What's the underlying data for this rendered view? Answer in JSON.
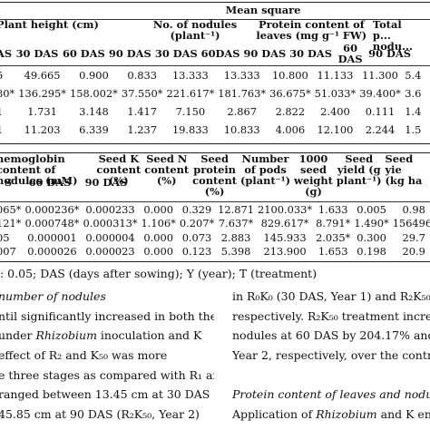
{
  "table1": {
    "group_header": "Mean square",
    "col_groups": [
      "Plant height (cm)",
      "No. of nodules (plant⁻¹)",
      "Protein content of leaves (mg g⁻¹ FW)",
      "Total p... nodu..."
    ],
    "sub_headers": [
      "AS",
      "30 DAS",
      "60 DAS",
      "90 DAS",
      "30 DAS",
      "60DAS",
      "90 DAS",
      "30 DAS",
      "60 DAS",
      "90 DAS"
    ],
    "rows": [
      [
        "5",
        "49.665",
        "0.900",
        "0.833",
        "13.333",
        "13.333",
        "10.800",
        "11.133",
        "11.300",
        "5.4"
      ],
      [
        "80*",
        "136.295*",
        "158.002*",
        "37.550*",
        "221.617*",
        "181.763*",
        "36.675*",
        "51.033*",
        "39.400*",
        "3.6"
      ],
      [
        "1",
        "1.731",
        "3.148",
        "1.417",
        "7.150",
        "2.867",
        "2.822",
        "2.400",
        "0.111",
        "1.4"
      ],
      [
        "1",
        "11.203",
        "6.339",
        "1.237",
        "19.833",
        "10.833",
        "4.006",
        "12.100",
        "2.244",
        "1.5"
      ]
    ]
  },
  "table2": {
    "headers": [
      "nemoglobin content of nodules (mM)",
      "Seed K content (%)",
      "Seed N content (%)",
      "Seed protein content (%)",
      "Number of pods (plant⁻¹)",
      "1000 seed weight (g)",
      "Seed yield (g plant⁻¹)",
      "Seed yie (kg ha"
    ],
    "sub_headers": [
      "S",
      "60 DAS",
      "90 DAS"
    ],
    "rows": [
      [
        "065*",
        "0.000236*",
        "0.000233",
        "0.000",
        "0.329",
        "12.871",
        "2100.033*",
        "1.633",
        "0.005",
        "0.98"
      ],
      [
        "121*",
        "0.000748*",
        "0.000313*",
        "1.106*",
        "0.207*",
        "7.637*",
        "829.617*",
        "8.791*",
        "1.490*",
        "156496."
      ],
      [
        "05",
        "0.000001",
        "0.000004",
        "0.000",
        "0.073",
        "2.883",
        "145.933",
        "2.035*",
        "0.300",
        "29.7"
      ],
      [
        "007",
        "0.000026",
        "0.000023",
        "0.000",
        "0.123",
        "5.398",
        "213.900",
        "1.653",
        "0.198",
        "20.9"
      ]
    ]
  },
  "footnote": ": 0.05; DAS (days after sowing); Y (year); T (treatment)",
  "left_col": {
    "heading": "number of nodules",
    "lines": [
      "ntil significantly increased in both the",
      "under Rhizobium inoculation and K",
      "effect of R₂ and K₅₀ was more",
      "e three stages as compared with R₁ and",
      "ranged between 13.45 cm at 30 DAS",
      "45.85 cm at 90 DAS (R₂K₅₀, Year 2)"
    ]
  },
  "right_col": {
    "lines": [
      "in R₀K₀ (30 DAS, Year 1) and R₂K₅₀",
      "respectively. R₂K₅₀ treatment increase",
      "nodules at 60 DAS by 204.17% and 212.5",
      "Year 2, respectively, over the control."
    ],
    "heading": "Protein content of leaves and nodule",
    "last_line": "Application of Rhizobium and K enh"
  }
}
